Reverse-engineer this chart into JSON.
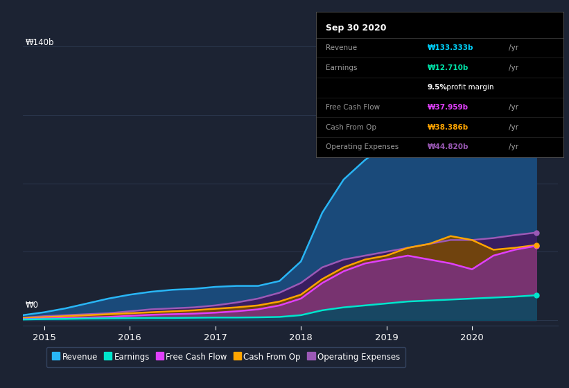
{
  "bg_color": "#1c2333",
  "plot_bg_color": "#1c2333",
  "grid_color": "#2d3a52",
  "ylabel_top": "₩140b",
  "ylabel_bottom": "₩0",
  "x_ticks": [
    2015,
    2016,
    2017,
    2018,
    2019,
    2020
  ],
  "x_min": 2014.75,
  "x_max": 2021.0,
  "y_min": -3,
  "y_max": 148,
  "info_box": {
    "date": "Sep 30 2020",
    "rows": [
      {
        "label": "Revenue",
        "value": "₩133.333b",
        "suffix": "/yr",
        "val_color": "#00d4ff",
        "label_color": "#999999"
      },
      {
        "label": "Earnings",
        "value": "₩12.710b",
        "suffix": "/yr",
        "val_color": "#00e5aa",
        "label_color": "#999999"
      },
      {
        "label": "",
        "value": "9.5%",
        "suffix": " profit margin",
        "val_color": "#ffffff",
        "label_color": "#999999"
      },
      {
        "label": "Free Cash Flow",
        "value": "₩37.959b",
        "suffix": "/yr",
        "val_color": "#e040fb",
        "label_color": "#999999"
      },
      {
        "label": "Cash From Op",
        "value": "₩38.386b",
        "suffix": "/yr",
        "val_color": "#ffa500",
        "label_color": "#999999"
      },
      {
        "label": "Operating Expenses",
        "value": "₩44.820b",
        "suffix": "/yr",
        "val_color": "#9b59b6",
        "label_color": "#999999"
      }
    ]
  },
  "series": {
    "Revenue": {
      "line_color": "#29b6f6",
      "fill_color": "#1a4a7a",
      "x": [
        2014.75,
        2015.0,
        2015.25,
        2015.5,
        2015.75,
        2016.0,
        2016.25,
        2016.5,
        2016.75,
        2017.0,
        2017.25,
        2017.5,
        2017.75,
        2018.0,
        2018.25,
        2018.5,
        2018.75,
        2019.0,
        2019.25,
        2019.5,
        2019.75,
        2020.0,
        2020.25,
        2020.5,
        2020.75
      ],
      "y": [
        2.5,
        4,
        6,
        8.5,
        11,
        13,
        14.5,
        15.5,
        16,
        17,
        17.5,
        17.5,
        20,
        30,
        55,
        72,
        82,
        90,
        97,
        102,
        108,
        112,
        120,
        128,
        133
      ]
    },
    "Earnings": {
      "line_color": "#00e5cc",
      "fill_color": "#004d60",
      "x": [
        2014.75,
        2015.0,
        2015.25,
        2015.5,
        2015.75,
        2016.0,
        2016.25,
        2016.5,
        2016.75,
        2017.0,
        2017.25,
        2017.5,
        2017.75,
        2018.0,
        2018.25,
        2018.5,
        2018.75,
        2019.0,
        2019.25,
        2019.5,
        2019.75,
        2020.0,
        2020.25,
        2020.5,
        2020.75
      ],
      "y": [
        0.3,
        0.5,
        0.6,
        0.8,
        0.9,
        1.0,
        1.1,
        1.1,
        1.2,
        1.3,
        1.3,
        1.4,
        1.6,
        2.5,
        5,
        6.5,
        7.5,
        8.5,
        9.5,
        10,
        10.5,
        11,
        11.5,
        12,
        12.7
      ]
    },
    "Free Cash Flow": {
      "line_color": "#e040fb",
      "fill_color": "#7b2f8a",
      "x": [
        2014.75,
        2015.0,
        2015.25,
        2015.5,
        2015.75,
        2016.0,
        2016.25,
        2016.5,
        2016.75,
        2017.0,
        2017.25,
        2017.5,
        2017.75,
        2018.0,
        2018.25,
        2018.5,
        2018.75,
        2019.0,
        2019.25,
        2019.5,
        2019.75,
        2020.0,
        2020.25,
        2020.5,
        2020.75
      ],
      "y": [
        0.5,
        0.8,
        1.0,
        1.3,
        1.6,
        2.2,
        2.7,
        3.0,
        3.3,
        3.8,
        4.5,
        5.5,
        7.5,
        11,
        19,
        25,
        29,
        31,
        33,
        31,
        29,
        26,
        33,
        36,
        38
      ]
    },
    "Cash From Op": {
      "line_color": "#ffa500",
      "fill_color": "#7a4a00",
      "x": [
        2014.75,
        2015.0,
        2015.25,
        2015.5,
        2015.75,
        2016.0,
        2016.25,
        2016.5,
        2016.75,
        2017.0,
        2017.25,
        2017.5,
        2017.75,
        2018.0,
        2018.25,
        2018.5,
        2018.75,
        2019.0,
        2019.25,
        2019.5,
        2019.75,
        2020.0,
        2020.25,
        2020.5,
        2020.75
      ],
      "y": [
        1.0,
        1.5,
        2.0,
        2.5,
        3.0,
        3.5,
        4.0,
        4.5,
        5.0,
        5.8,
        6.5,
        7.5,
        9.5,
        13,
        21,
        27,
        31,
        33,
        37,
        39,
        43,
        41,
        36,
        37,
        38.4
      ]
    },
    "Operating Expenses": {
      "line_color": "#9b59b6",
      "fill_color": "#3d1a5e",
      "x": [
        2014.75,
        2015.0,
        2015.25,
        2015.5,
        2015.75,
        2016.0,
        2016.25,
        2016.5,
        2016.75,
        2017.0,
        2017.25,
        2017.5,
        2017.75,
        2018.0,
        2018.25,
        2018.5,
        2018.75,
        2019.0,
        2019.25,
        2019.5,
        2019.75,
        2020.0,
        2020.25,
        2020.5,
        2020.75
      ],
      "y": [
        1.2,
        2.0,
        2.5,
        3.0,
        3.5,
        4.5,
        5.5,
        6.0,
        6.5,
        7.5,
        9.0,
        11.0,
        14.0,
        19,
        27,
        31,
        33,
        35,
        37,
        39,
        41,
        41,
        42,
        43.5,
        44.8
      ]
    }
  },
  "legend": [
    {
      "label": "Revenue",
      "color": "#29b6f6"
    },
    {
      "label": "Earnings",
      "color": "#00e5cc"
    },
    {
      "label": "Free Cash Flow",
      "color": "#e040fb"
    },
    {
      "label": "Cash From Op",
      "color": "#ffa500"
    },
    {
      "label": "Operating Expenses",
      "color": "#9b59b6"
    }
  ]
}
